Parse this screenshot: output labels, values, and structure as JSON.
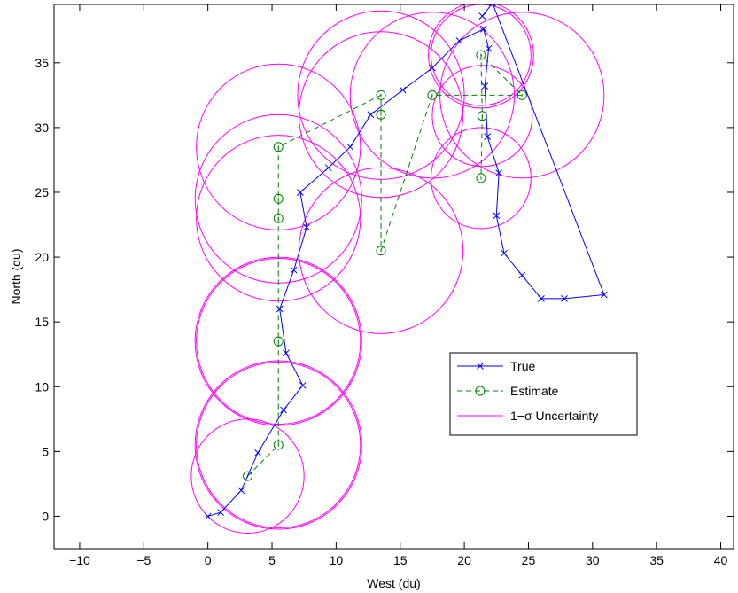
{
  "chart_data": {
    "type": "line",
    "xlabel": "West (du)",
    "ylabel": "North (du)",
    "xlim": [
      -12,
      41
    ],
    "ylim": [
      -2.5,
      39.5
    ],
    "xticks": [
      -10,
      -5,
      0,
      5,
      10,
      15,
      20,
      25,
      30,
      35,
      40
    ],
    "yticks": [
      0,
      5,
      10,
      15,
      20,
      25,
      30,
      35
    ],
    "xtick_labels": [
      "−10",
      "−5",
      "0",
      "5",
      "10",
      "15",
      "20",
      "25",
      "30",
      "35",
      "40"
    ],
    "ytick_labels": [
      "0",
      "5",
      "10",
      "15",
      "20",
      "25",
      "30",
      "35"
    ],
    "grid": false,
    "legend_position": "lower-right",
    "series": [
      {
        "name": "True",
        "color": "#0000ff",
        "style": "solid",
        "marker": "x",
        "points": [
          [
            0,
            0
          ],
          [
            1,
            0.3
          ],
          [
            2.6,
            2
          ],
          [
            3.9,
            4.9
          ],
          [
            5.9,
            8.2
          ],
          [
            7.4,
            10.1
          ],
          [
            6.1,
            12.6
          ],
          [
            5.6,
            16
          ],
          [
            6.7,
            19
          ],
          [
            7.7,
            22.3
          ],
          [
            7.2,
            25
          ],
          [
            9.4,
            26.9
          ],
          [
            11.1,
            28.5
          ],
          [
            12.7,
            31
          ],
          [
            15.2,
            32.9
          ],
          [
            17.5,
            34.6
          ],
          [
            19.6,
            36.7
          ],
          [
            21.5,
            37.6
          ],
          [
            21.9,
            36.1
          ],
          [
            21.6,
            33.2
          ],
          [
            21.8,
            29.3
          ],
          [
            22.7,
            26.5
          ],
          [
            22.5,
            23.2
          ],
          [
            23.1,
            20.3
          ],
          [
            24.5,
            18.6
          ],
          [
            26,
            16.8
          ],
          [
            27.8,
            16.8
          ],
          [
            30.9,
            17.1
          ],
          [
            22.2,
            39.6
          ],
          [
            21.4,
            38.6
          ]
        ]
      },
      {
        "name": "Estimate",
        "color": "#008000",
        "style": "dashed",
        "marker": "circle",
        "points": [
          [
            3.1,
            3.1
          ],
          [
            5.5,
            5.5
          ],
          [
            5.5,
            13.5
          ],
          [
            5.5,
            23
          ],
          [
            5.5,
            24.5
          ],
          [
            5.5,
            28.5
          ],
          [
            13.5,
            32.5
          ],
          [
            13.5,
            31
          ],
          [
            13.5,
            20.5
          ],
          [
            17.5,
            32.5
          ],
          [
            24.5,
            32.5
          ],
          [
            21.3,
            35.6
          ],
          [
            21.4,
            30.9
          ],
          [
            21.3,
            26.1
          ]
        ]
      },
      {
        "name": "1−σ Uncertainty",
        "color": "#ff00ff",
        "style": "solid",
        "marker": "none",
        "circles": [
          {
            "center": [
              3.1,
              3.1
            ],
            "radius": 4.4
          },
          {
            "center": [
              5.5,
              5.5
            ],
            "radius": 6.4
          },
          {
            "center": [
              5.5,
              5.5
            ],
            "radius": 6.5
          },
          {
            "center": [
              5.5,
              13.5
            ],
            "radius": 6.4
          },
          {
            "center": [
              5.5,
              13.5
            ],
            "radius": 6.5
          },
          {
            "center": [
              5.5,
              23
            ],
            "radius": 6.4
          },
          {
            "center": [
              5.5,
              24.5
            ],
            "radius": 6.5
          },
          {
            "center": [
              5.5,
              28.5
            ],
            "radius": 6.4
          },
          {
            "center": [
              13.5,
              20.5
            ],
            "radius": 6.4
          },
          {
            "center": [
              13.5,
              31
            ],
            "radius": 6.4
          },
          {
            "center": [
              13.5,
              32.5
            ],
            "radius": 6.5
          },
          {
            "center": [
              17.5,
              32.5
            ],
            "radius": 6.4
          },
          {
            "center": [
              24.5,
              32.5
            ],
            "radius": 6.4
          },
          {
            "center": [
              21.3,
              35.6
            ],
            "radius": 3.9
          },
          {
            "center": [
              21.3,
              35.6
            ],
            "radius": 4.1
          },
          {
            "center": [
              21.4,
              30.9
            ],
            "radius": 3.9
          },
          {
            "center": [
              21.3,
              26.1
            ],
            "radius": 3.9
          }
        ]
      }
    ]
  }
}
